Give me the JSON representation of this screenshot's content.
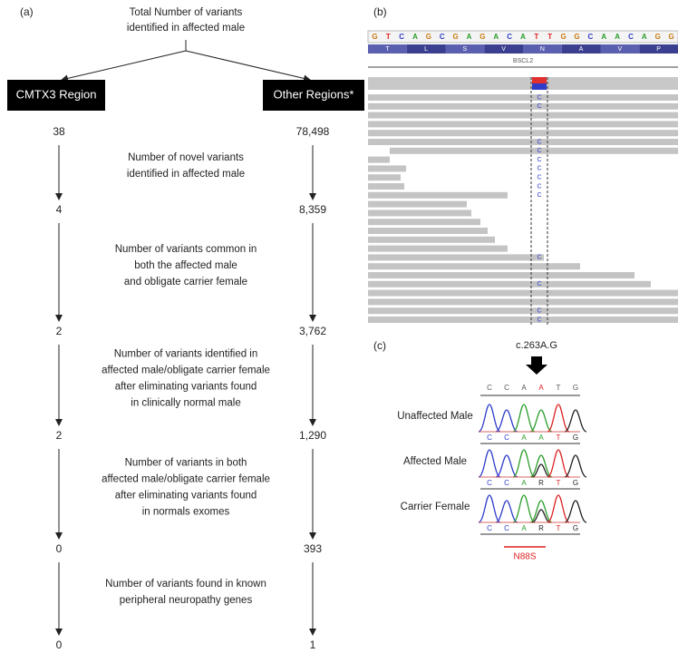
{
  "panel_a": {
    "label": "(a)",
    "top": [
      "Total Number of variants",
      "identified in affected male"
    ],
    "left_box": "CMTX3 Region",
    "right_box": "Other Regions*",
    "counts": [
      [
        "38",
        "78,498"
      ],
      [
        "4",
        "8,359"
      ],
      [
        "2",
        "3,762"
      ],
      [
        "2",
        "1,290"
      ],
      [
        "0",
        "393"
      ],
      [
        "0",
        "1"
      ]
    ],
    "steps": [
      [
        "Number of novel variants",
        "identified in affected male"
      ],
      [
        "Number of variants common in",
        "both the affected male",
        "and obligate carrier female"
      ],
      [
        "Number of variants identified in",
        "affected male/obligate carrier female",
        "after eliminating variants found",
        "in clinically normal male"
      ],
      [
        "Number of variants in both",
        "affected male/obligate carrier female",
        "after eliminating variants found",
        "in normals exomes"
      ],
      [
        "Number of variants found in known",
        "peripheral neuropathy genes"
      ]
    ]
  },
  "panel_b": {
    "label": "(b)",
    "sequence": [
      "G",
      "T",
      "C",
      "A",
      "G",
      "C",
      "G",
      "A",
      "G",
      "A",
      "C",
      "A",
      "T",
      "T",
      "G",
      "G",
      "C",
      "A",
      "A",
      "C",
      "A",
      "G",
      "G"
    ],
    "amino_acids": [
      "T",
      "L",
      "S",
      "V",
      "N",
      "A",
      "V",
      "P"
    ],
    "gene": "BSCL2",
    "read_base": "C"
  },
  "panel_c": {
    "label": "(c)",
    "mutation": "c.263A.G",
    "reference": [
      "C",
      "C",
      "A",
      "A",
      "T",
      "G"
    ],
    "samples": [
      {
        "name": "Unaffected Male",
        "bases": [
          "C",
          "C",
          "A",
          "A",
          "T",
          "G"
        ]
      },
      {
        "name": "Affected Male",
        "bases": [
          "C",
          "C",
          "A",
          "R",
          "T",
          "G"
        ]
      },
      {
        "name": "Carrier Female",
        "bases": [
          "C",
          "C",
          "A",
          "R",
          "T",
          "G"
        ]
      }
    ],
    "protein_change": "N88S"
  }
}
